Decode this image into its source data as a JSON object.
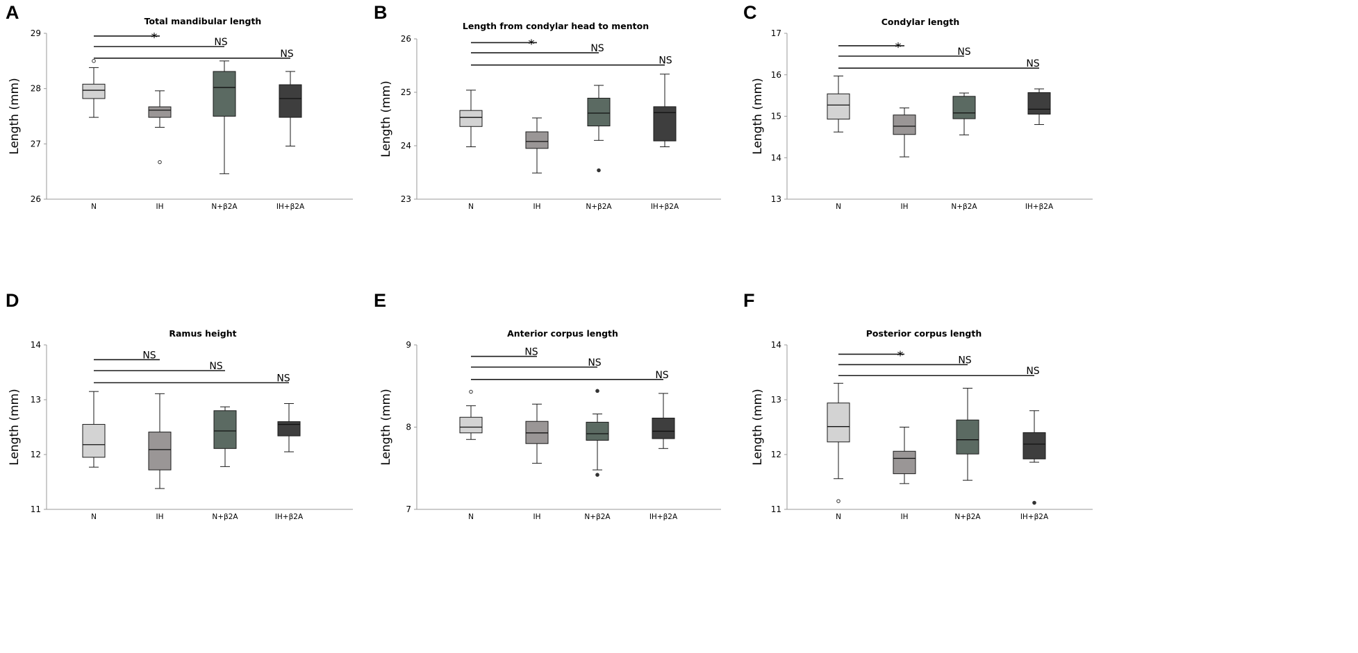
{
  "figure": {
    "group_colors": [
      "#d3d3d3",
      "#9a9696",
      "#5b6a62",
      "#3e3e3e"
    ],
    "axis_color": "#9a9a9a",
    "ink_color": "#1a1a1a"
  },
  "chart_data": [
    {
      "type": "boxplot",
      "panel": "A",
      "title": "Total mandibular length",
      "ylabel": "Length (mm)",
      "categories": [
        "N",
        "IH",
        "N+β2A",
        "IH+β2A"
      ],
      "ylim": [
        26,
        29
      ],
      "yticks": [
        "26",
        "27",
        "28",
        "29"
      ],
      "boxes": [
        {
          "whisker_low": 27.48,
          "q1": 27.82,
          "median": 27.97,
          "q3": 28.08,
          "whisker_high": 28.38,
          "outliers": [
            {
              "value": 28.5,
              "style": "open"
            }
          ]
        },
        {
          "whisker_low": 27.3,
          "q1": 27.48,
          "median": 27.61,
          "q3": 27.67,
          "whisker_high": 27.96,
          "outliers": [
            {
              "value": 26.67,
              "style": "open"
            }
          ]
        },
        {
          "whisker_low": 26.46,
          "q1": 27.5,
          "median": 28.02,
          "q3": 28.31,
          "whisker_high": 28.5,
          "outliers": []
        },
        {
          "whisker_low": 26.96,
          "q1": 27.48,
          "median": 27.82,
          "q3": 28.07,
          "whisker_high": 28.31,
          "outliers": []
        }
      ],
      "comparisons": [
        {
          "label": "*",
          "from": 0,
          "to": 1,
          "y": 28.95
        },
        {
          "label": "NS",
          "from": 0,
          "to": 2,
          "y": 28.76
        },
        {
          "label": "NS",
          "from": 0,
          "to": 3,
          "y": 28.55
        }
      ]
    },
    {
      "type": "boxplot",
      "panel": "B",
      "title": "Length from condylar head to menton",
      "ylabel": "Length (mm)",
      "categories": [
        "N",
        "IH",
        "N+β2A",
        "IH+β2A"
      ],
      "ylim": [
        23,
        26
      ],
      "yticks": [
        "23",
        "24",
        "25",
        "26"
      ],
      "boxes": [
        {
          "whisker_low": 23.98,
          "q1": 24.36,
          "median": 24.53,
          "q3": 24.66,
          "whisker_high": 25.04,
          "outliers": []
        },
        {
          "whisker_low": 23.49,
          "q1": 23.95,
          "median": 24.08,
          "q3": 24.26,
          "whisker_high": 24.52,
          "outliers": []
        },
        {
          "whisker_low": 24.1,
          "q1": 24.37,
          "median": 24.61,
          "q3": 24.89,
          "whisker_high": 25.13,
          "outliers": [
            {
              "value": 23.54,
              "style": "filled"
            }
          ]
        },
        {
          "whisker_low": 23.98,
          "q1": 24.09,
          "median": 24.62,
          "q3": 24.73,
          "whisker_high": 25.34,
          "outliers": []
        }
      ],
      "comparisons": [
        {
          "label": "*",
          "from": 0,
          "to": 1,
          "y": 25.93
        },
        {
          "label": "NS",
          "from": 0,
          "to": 2,
          "y": 25.74
        },
        {
          "label": "NS",
          "from": 0,
          "to": 3,
          "y": 25.51
        }
      ]
    },
    {
      "type": "boxplot",
      "panel": "C",
      "title": "Condylar length",
      "ylabel": "Length (mm)",
      "categories": [
        "N",
        "IH",
        "N+β2A",
        "IH+β2A"
      ],
      "ylim": [
        13,
        17
      ],
      "yticks": [
        "13",
        "14",
        "15",
        "16",
        "17"
      ],
      "boxes": [
        {
          "whisker_low": 14.62,
          "q1": 14.93,
          "median": 15.27,
          "q3": 15.54,
          "whisker_high": 15.97,
          "outliers": []
        },
        {
          "whisker_low": 14.02,
          "q1": 14.56,
          "median": 14.76,
          "q3": 15.03,
          "whisker_high": 15.2,
          "outliers": []
        },
        {
          "whisker_low": 14.55,
          "q1": 14.94,
          "median": 15.08,
          "q3": 15.48,
          "whisker_high": 15.56,
          "outliers": []
        },
        {
          "whisker_low": 14.8,
          "q1": 15.05,
          "median": 15.17,
          "q3": 15.57,
          "whisker_high": 15.66,
          "outliers": []
        }
      ],
      "comparisons": [
        {
          "label": "*",
          "from": 0,
          "to": 1,
          "y": 16.7
        },
        {
          "label": "NS",
          "from": 0,
          "to": 2,
          "y": 16.45
        },
        {
          "label": "NS",
          "from": 0,
          "to": 3,
          "y": 16.16
        }
      ]
    },
    {
      "type": "boxplot",
      "panel": "D",
      "title": "Ramus height",
      "ylabel": "Length (mm)",
      "categories": [
        "N",
        "IH",
        "N+β2A",
        "IH+β2A"
      ],
      "ylim": [
        11,
        14
      ],
      "yticks": [
        "11",
        "12",
        "13",
        "14"
      ],
      "boxes": [
        {
          "whisker_low": 11.77,
          "q1": 11.95,
          "median": 12.18,
          "q3": 12.55,
          "whisker_high": 13.15,
          "outliers": []
        },
        {
          "whisker_low": 11.38,
          "q1": 11.72,
          "median": 12.09,
          "q3": 12.41,
          "whisker_high": 13.11,
          "outliers": []
        },
        {
          "whisker_low": 11.78,
          "q1": 12.11,
          "median": 12.43,
          "q3": 12.8,
          "whisker_high": 12.87,
          "outliers": []
        },
        {
          "whisker_low": 12.05,
          "q1": 12.34,
          "median": 12.55,
          "q3": 12.6,
          "whisker_high": 12.93,
          "outliers": []
        }
      ],
      "comparisons": [
        {
          "label": "NS",
          "from": 0,
          "to": 1,
          "y": 13.73
        },
        {
          "label": "NS",
          "from": 0,
          "to": 2,
          "y": 13.53
        },
        {
          "label": "NS",
          "from": 0,
          "to": 3,
          "y": 13.31
        }
      ]
    },
    {
      "type": "boxplot",
      "panel": "E",
      "title": "Anterior corpus length",
      "ylabel": "Length (mm)",
      "categories": [
        "N",
        "IH",
        "N+β2A",
        "IH+β2A"
      ],
      "ylim": [
        7,
        9
      ],
      "yticks": [
        "7",
        "8",
        "9"
      ],
      "boxes": [
        {
          "whisker_low": 7.85,
          "q1": 7.93,
          "median": 8.0,
          "q3": 8.12,
          "whisker_high": 8.26,
          "outliers": [
            {
              "value": 8.43,
              "style": "open"
            }
          ]
        },
        {
          "whisker_low": 7.56,
          "q1": 7.8,
          "median": 7.93,
          "q3": 8.07,
          "whisker_high": 8.28,
          "outliers": []
        },
        {
          "whisker_low": 7.48,
          "q1": 7.84,
          "median": 7.92,
          "q3": 8.06,
          "whisker_high": 8.16,
          "outliers": [
            {
              "value": 8.44,
              "style": "filled"
            },
            {
              "value": 7.42,
              "style": "filled"
            }
          ]
        },
        {
          "whisker_low": 7.74,
          "q1": 7.86,
          "median": 7.95,
          "q3": 8.11,
          "whisker_high": 8.41,
          "outliers": []
        }
      ],
      "comparisons": [
        {
          "label": "NS",
          "from": 0,
          "to": 1,
          "y": 8.86
        },
        {
          "label": "NS",
          "from": 0,
          "to": 2,
          "y": 8.73
        },
        {
          "label": "NS",
          "from": 0,
          "to": 3,
          "y": 8.58
        }
      ]
    },
    {
      "type": "boxplot",
      "panel": "F",
      "title": "Posterior corpus length",
      "ylabel": "Length (mm)",
      "categories": [
        "N",
        "IH",
        "N+β2A",
        "IH+β2A"
      ],
      "ylim": [
        11,
        14
      ],
      "yticks": [
        "11",
        "12",
        "13",
        "14"
      ],
      "boxes": [
        {
          "whisker_low": 11.56,
          "q1": 12.23,
          "median": 12.51,
          "q3": 12.94,
          "whisker_high": 13.3,
          "outliers": [
            {
              "value": 11.15,
              "style": "open"
            }
          ]
        },
        {
          "whisker_low": 11.47,
          "q1": 11.65,
          "median": 11.93,
          "q3": 12.06,
          "whisker_high": 12.5,
          "outliers": []
        },
        {
          "whisker_low": 11.53,
          "q1": 12.01,
          "median": 12.27,
          "q3": 12.63,
          "whisker_high": 13.21,
          "outliers": []
        },
        {
          "whisker_low": 11.86,
          "q1": 11.92,
          "median": 12.19,
          "q3": 12.4,
          "whisker_high": 12.8,
          "outliers": [
            {
              "value": 11.12,
              "style": "filled"
            }
          ]
        }
      ],
      "comparisons": [
        {
          "label": "*",
          "from": 0,
          "to": 1,
          "y": 13.83
        },
        {
          "label": "NS",
          "from": 0,
          "to": 2,
          "y": 13.64
        },
        {
          "label": "NS",
          "from": 0,
          "to": 3,
          "y": 13.44
        }
      ]
    }
  ]
}
